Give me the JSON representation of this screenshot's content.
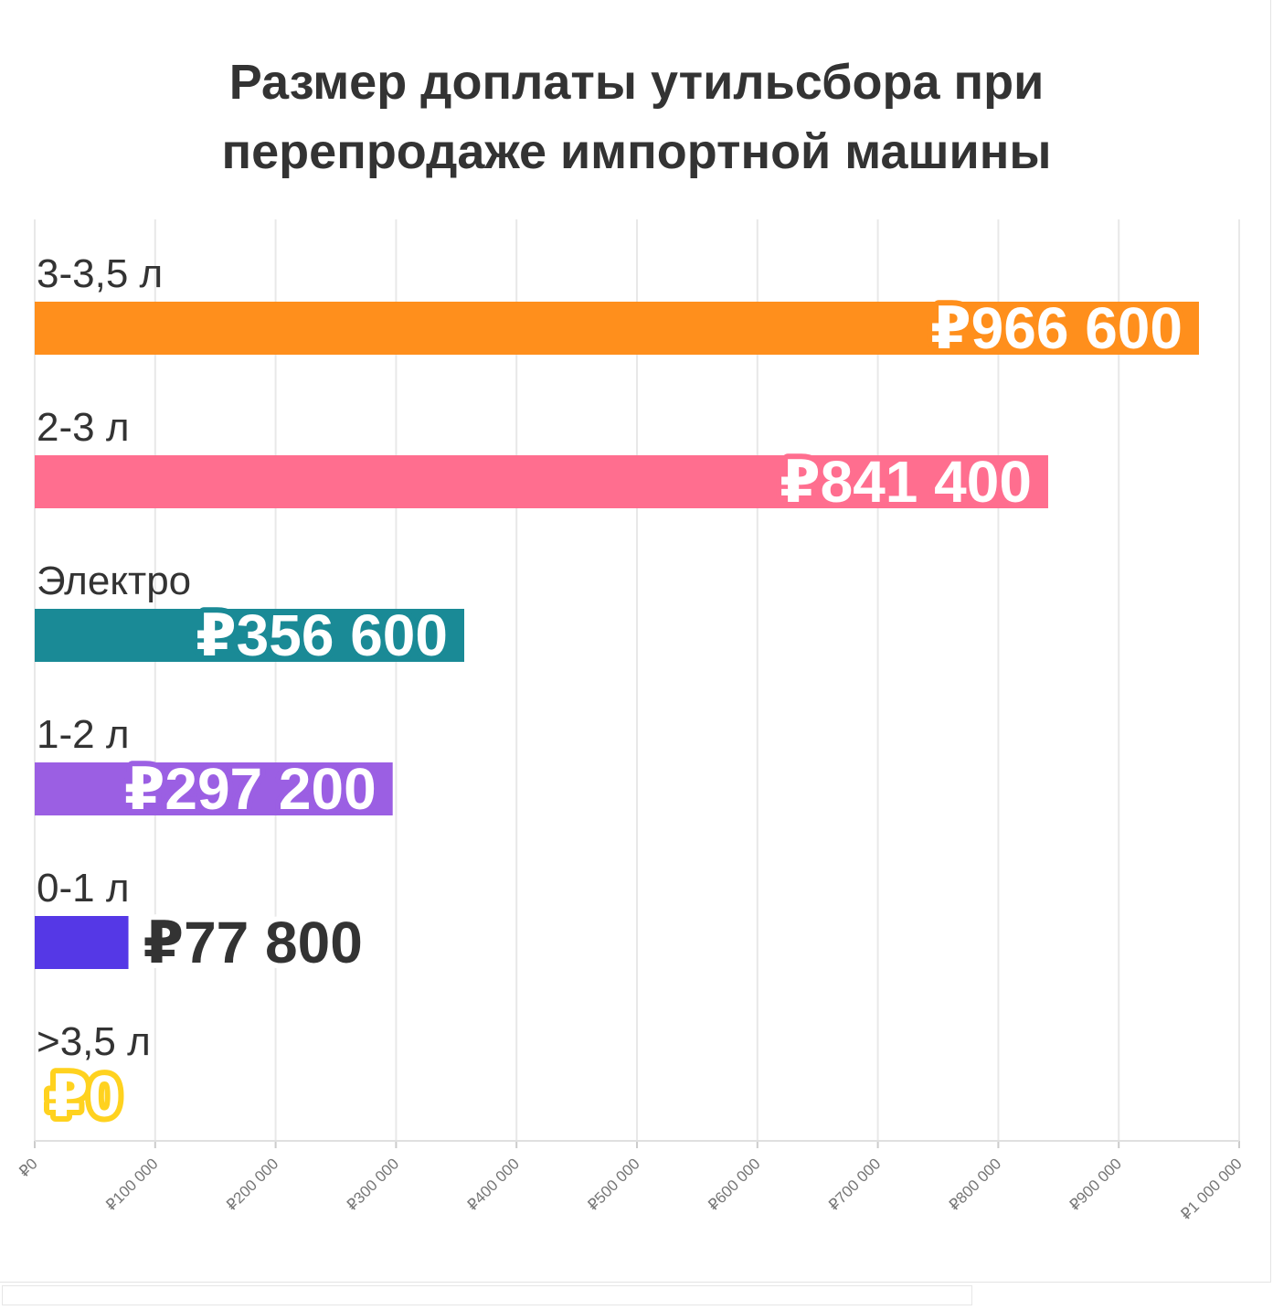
{
  "chart_data": {
    "type": "bar",
    "orientation": "horizontal",
    "title_lines": [
      "Размер доплаты утильсбора при",
      "перепродаже импортной машины"
    ],
    "categories": [
      "3-3,5 л",
      "2-3 л",
      "Электро",
      "1-2 л",
      "0-1 л",
      ">3,5 л"
    ],
    "values": [
      966600,
      841400,
      356600,
      297200,
      77800,
      0
    ],
    "value_labels": [
      "₽966 600",
      "₽841 400",
      "₽356 600",
      "₽297 200",
      "₽77 800",
      "₽0"
    ],
    "colors": [
      "#ff8f1c",
      "#ff6e8f",
      "#1a8a96",
      "#9b5fe3",
      "#5538e6",
      "#ffd21f"
    ],
    "xlim": [
      0,
      1000000
    ],
    "x_ticks": [
      0,
      100000,
      200000,
      300000,
      400000,
      500000,
      600000,
      700000,
      800000,
      900000,
      1000000
    ],
    "x_tick_labels": [
      "₽0",
      "₽100 000",
      "₽200 000",
      "₽300 000",
      "₽400 000",
      "₽500 000",
      "₽600 000",
      "₽700 000",
      "₽800 000",
      "₽900 000",
      "₽1 000 000"
    ],
    "grid": "vertical",
    "legend": "none",
    "xlabel": "",
    "ylabel": ""
  }
}
